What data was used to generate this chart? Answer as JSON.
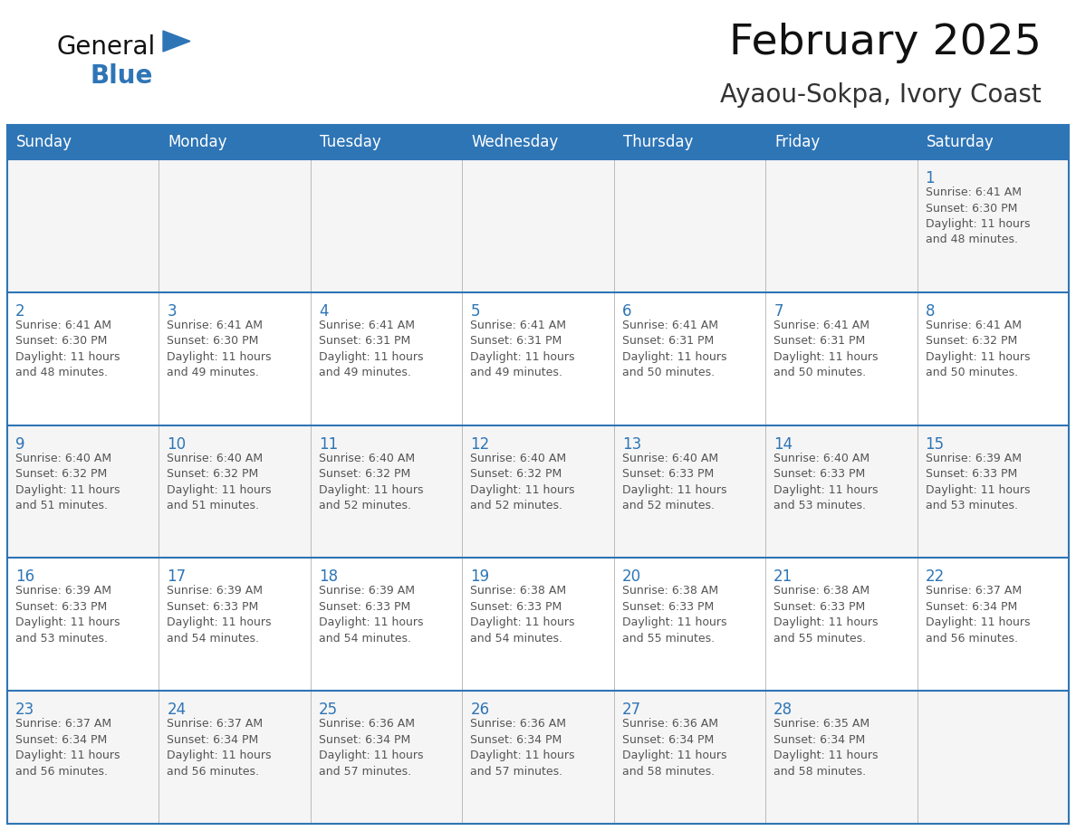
{
  "title": "February 2025",
  "subtitle": "Ayaou-Sokpa, Ivory Coast",
  "header_bg": "#2E75B6",
  "header_text_color": "#FFFFFF",
  "cell_border_color": "#2E75B6",
  "row_border_color": "#2E75B6",
  "col_border_color": "#BBBBBB",
  "day_number_color": "#2E75B6",
  "info_text_color": "#555555",
  "background_color": "#FFFFFF",
  "row_bg_even": "#FFFFFF",
  "row_bg_odd": "#F5F5F5",
  "days_of_week": [
    "Sunday",
    "Monday",
    "Tuesday",
    "Wednesday",
    "Thursday",
    "Friday",
    "Saturday"
  ],
  "weeks": [
    [
      {
        "day": null,
        "info": null
      },
      {
        "day": null,
        "info": null
      },
      {
        "day": null,
        "info": null
      },
      {
        "day": null,
        "info": null
      },
      {
        "day": null,
        "info": null
      },
      {
        "day": null,
        "info": null
      },
      {
        "day": 1,
        "info": "Sunrise: 6:41 AM\nSunset: 6:30 PM\nDaylight: 11 hours\nand 48 minutes."
      }
    ],
    [
      {
        "day": 2,
        "info": "Sunrise: 6:41 AM\nSunset: 6:30 PM\nDaylight: 11 hours\nand 48 minutes."
      },
      {
        "day": 3,
        "info": "Sunrise: 6:41 AM\nSunset: 6:30 PM\nDaylight: 11 hours\nand 49 minutes."
      },
      {
        "day": 4,
        "info": "Sunrise: 6:41 AM\nSunset: 6:31 PM\nDaylight: 11 hours\nand 49 minutes."
      },
      {
        "day": 5,
        "info": "Sunrise: 6:41 AM\nSunset: 6:31 PM\nDaylight: 11 hours\nand 49 minutes."
      },
      {
        "day": 6,
        "info": "Sunrise: 6:41 AM\nSunset: 6:31 PM\nDaylight: 11 hours\nand 50 minutes."
      },
      {
        "day": 7,
        "info": "Sunrise: 6:41 AM\nSunset: 6:31 PM\nDaylight: 11 hours\nand 50 minutes."
      },
      {
        "day": 8,
        "info": "Sunrise: 6:41 AM\nSunset: 6:32 PM\nDaylight: 11 hours\nand 50 minutes."
      }
    ],
    [
      {
        "day": 9,
        "info": "Sunrise: 6:40 AM\nSunset: 6:32 PM\nDaylight: 11 hours\nand 51 minutes."
      },
      {
        "day": 10,
        "info": "Sunrise: 6:40 AM\nSunset: 6:32 PM\nDaylight: 11 hours\nand 51 minutes."
      },
      {
        "day": 11,
        "info": "Sunrise: 6:40 AM\nSunset: 6:32 PM\nDaylight: 11 hours\nand 52 minutes."
      },
      {
        "day": 12,
        "info": "Sunrise: 6:40 AM\nSunset: 6:32 PM\nDaylight: 11 hours\nand 52 minutes."
      },
      {
        "day": 13,
        "info": "Sunrise: 6:40 AM\nSunset: 6:33 PM\nDaylight: 11 hours\nand 52 minutes."
      },
      {
        "day": 14,
        "info": "Sunrise: 6:40 AM\nSunset: 6:33 PM\nDaylight: 11 hours\nand 53 minutes."
      },
      {
        "day": 15,
        "info": "Sunrise: 6:39 AM\nSunset: 6:33 PM\nDaylight: 11 hours\nand 53 minutes."
      }
    ],
    [
      {
        "day": 16,
        "info": "Sunrise: 6:39 AM\nSunset: 6:33 PM\nDaylight: 11 hours\nand 53 minutes."
      },
      {
        "day": 17,
        "info": "Sunrise: 6:39 AM\nSunset: 6:33 PM\nDaylight: 11 hours\nand 54 minutes."
      },
      {
        "day": 18,
        "info": "Sunrise: 6:39 AM\nSunset: 6:33 PM\nDaylight: 11 hours\nand 54 minutes."
      },
      {
        "day": 19,
        "info": "Sunrise: 6:38 AM\nSunset: 6:33 PM\nDaylight: 11 hours\nand 54 minutes."
      },
      {
        "day": 20,
        "info": "Sunrise: 6:38 AM\nSunset: 6:33 PM\nDaylight: 11 hours\nand 55 minutes."
      },
      {
        "day": 21,
        "info": "Sunrise: 6:38 AM\nSunset: 6:33 PM\nDaylight: 11 hours\nand 55 minutes."
      },
      {
        "day": 22,
        "info": "Sunrise: 6:37 AM\nSunset: 6:34 PM\nDaylight: 11 hours\nand 56 minutes."
      }
    ],
    [
      {
        "day": 23,
        "info": "Sunrise: 6:37 AM\nSunset: 6:34 PM\nDaylight: 11 hours\nand 56 minutes."
      },
      {
        "day": 24,
        "info": "Sunrise: 6:37 AM\nSunset: 6:34 PM\nDaylight: 11 hours\nand 56 minutes."
      },
      {
        "day": 25,
        "info": "Sunrise: 6:36 AM\nSunset: 6:34 PM\nDaylight: 11 hours\nand 57 minutes."
      },
      {
        "day": 26,
        "info": "Sunrise: 6:36 AM\nSunset: 6:34 PM\nDaylight: 11 hours\nand 57 minutes."
      },
      {
        "day": 27,
        "info": "Sunrise: 6:36 AM\nSunset: 6:34 PM\nDaylight: 11 hours\nand 58 minutes."
      },
      {
        "day": 28,
        "info": "Sunrise: 6:35 AM\nSunset: 6:34 PM\nDaylight: 11 hours\nand 58 minutes."
      },
      {
        "day": null,
        "info": null
      }
    ]
  ],
  "logo_general_color": "#111111",
  "logo_blue_color": "#2E75B6",
  "title_fontsize": 34,
  "subtitle_fontsize": 20,
  "header_fontsize": 12,
  "day_num_fontsize": 12,
  "info_fontsize": 9
}
